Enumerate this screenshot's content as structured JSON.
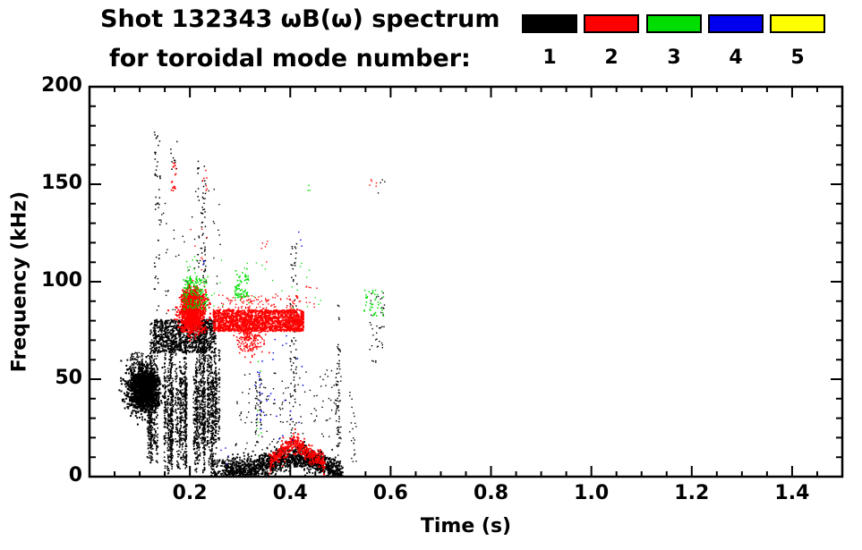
{
  "header": {
    "title": "Shot 132343 ωB(ω) spectrum",
    "subtitle": "for toroidal mode number:"
  },
  "chart_data": {
    "type": "scatter",
    "title": "Shot 132343 ωB(ω) spectrum",
    "subtitle": "for toroidal mode number:",
    "xlabel": "Time (s)",
    "ylabel": "Frequency (kHz)",
    "xlim": [
      0.0,
      1.5
    ],
    "ylim": [
      0,
      200
    ],
    "x_minor_step": 0.05,
    "y_minor_step": 10,
    "grid": false,
    "legend_position": "top-right",
    "xticks": [
      {
        "v": 0.2,
        "label": "0.2"
      },
      {
        "v": 0.4,
        "label": "0.4"
      },
      {
        "v": 0.6,
        "label": "0.6"
      },
      {
        "v": 0.8,
        "label": "0.8"
      },
      {
        "v": 1.0,
        "label": "1.0"
      },
      {
        "v": 1.2,
        "label": "1.2"
      },
      {
        "v": 1.4,
        "label": "1.4"
      }
    ],
    "yticks": [
      {
        "v": 0,
        "label": "0"
      },
      {
        "v": 50,
        "label": "50"
      },
      {
        "v": 100,
        "label": "100"
      },
      {
        "v": 150,
        "label": "150"
      },
      {
        "v": 200,
        "label": "200"
      }
    ],
    "legend": [
      {
        "label": "1",
        "color": "#000000"
      },
      {
        "label": "2",
        "color": "#ff0000"
      },
      {
        "label": "3",
        "color": "#00dd00"
      },
      {
        "label": "4",
        "color": "#0000ee"
      },
      {
        "label": "5",
        "color": "#ffff00"
      }
    ],
    "series": [
      {
        "name": "mode n=1",
        "color": "#000000",
        "clusters": [
          {
            "type": "gauss",
            "ct": 0.104,
            "cf": 45,
            "st": 0.015,
            "sf": 5.5,
            "n": 1200,
            "s": 2
          },
          {
            "type": "uniform",
            "t": [
              0.083,
              0.138
            ],
            "f": [
              36,
              53
            ],
            "n": 350,
            "s": 2
          },
          {
            "type": "uniform",
            "t": [
              0.08,
              0.125
            ],
            "f": [
              52,
              64
            ],
            "n": 90,
            "s": 1.5
          },
          {
            "type": "vlines",
            "t": [
              0.112,
              0.258
            ],
            "fb": [
              0,
              22
            ],
            "ft": [
              46,
              80
            ],
            "cols": 55,
            "per": 48,
            "s": 1.6
          },
          {
            "type": "uniform",
            "t": [
              0.125,
              0.248
            ],
            "f": [
              64,
              81
            ],
            "n": 900,
            "s": 1.8
          },
          {
            "type": "uniform",
            "t": [
              0.127,
              0.14
            ],
            "f": [
              85,
              178
            ],
            "n": 50,
            "s": 1.5
          },
          {
            "type": "vlines",
            "t": [
              0.212,
              0.23
            ],
            "fb": [
              85,
              110
            ],
            "ft": [
              150,
              183
            ],
            "cols": 4,
            "per": 14,
            "s": 1.5
          },
          {
            "type": "uniform",
            "t": [
              0.14,
              0.26
            ],
            "f": [
              82,
              148
            ],
            "n": 55,
            "s": 1.4
          },
          {
            "type": "uniform",
            "t": [
              0.16,
              0.176
            ],
            "f": [
              158,
              178
            ],
            "n": 10,
            "s": 1.5
          },
          {
            "type": "arc",
            "t": [
              0.27,
              0.503
            ],
            "peak": 0.42,
            "fpeak": 11,
            "fend": 2,
            "sf": 3,
            "n": 1500,
            "s": 1.8
          },
          {
            "type": "uniform",
            "t": [
              0.24,
              0.29
            ],
            "f": [
              0,
              9
            ],
            "n": 160,
            "s": 1.6
          },
          {
            "type": "uniform",
            "t": [
              0.29,
              0.5
            ],
            "f": [
              14,
              55
            ],
            "n": 130,
            "s": 1.4
          },
          {
            "type": "vlines",
            "t": [
              0.33,
              0.342
            ],
            "fb": [
              14,
              24
            ],
            "ft": [
              40,
              62
            ],
            "cols": 2,
            "per": 18,
            "s": 1.5
          },
          {
            "type": "uniform",
            "t": [
              0.398,
              0.412
            ],
            "f": [
              20,
              122
            ],
            "n": 85,
            "s": 1.5
          },
          {
            "type": "vlines",
            "t": [
              0.474,
              0.5
            ],
            "fb": [
              6,
              20
            ],
            "ft": [
              55,
              112
            ],
            "cols": 4,
            "per": 18,
            "s": 1.5
          },
          {
            "type": "uniform",
            "t": [
              0.517,
              0.532
            ],
            "f": [
              4,
              46
            ],
            "n": 22,
            "s": 1.4
          },
          {
            "type": "uniform",
            "t": [
              0.557,
              0.587
            ],
            "f": [
              58,
              96
            ],
            "n": 40,
            "s": 1.4
          },
          {
            "type": "uniform",
            "t": [
              0.574,
              0.59
            ],
            "f": [
              144,
              153
            ],
            "n": 4,
            "s": 1.4
          }
        ]
      },
      {
        "name": "mode n=2",
        "color": "#ff0000",
        "clusters": [
          {
            "type": "gauss",
            "ct": 0.203,
            "cf": 85,
            "st": 0.012,
            "sf": 5,
            "n": 650,
            "s": 2
          },
          {
            "type": "uniform",
            "t": [
              0.181,
              0.229
            ],
            "f": [
              74,
              94
            ],
            "n": 280,
            "s": 1.8
          },
          {
            "type": "gauss",
            "ct": 0.2,
            "cf": 93,
            "st": 0.009,
            "sf": 2.5,
            "n": 160,
            "s": 1.8
          },
          {
            "type": "uniform",
            "t": [
              0.245,
              0.425
            ],
            "f": [
              75,
              86
            ],
            "n": 1500,
            "s": 1.8
          },
          {
            "type": "uniform",
            "t": [
              0.255,
              0.42
            ],
            "f": [
              86,
              94
            ],
            "n": 110,
            "s": 1.4
          },
          {
            "type": "gauss",
            "ct": 0.318,
            "cf": 73,
            "st": 0.013,
            "sf": 5,
            "n": 220,
            "s": 1.6
          },
          {
            "type": "arc",
            "t": [
              0.356,
              0.468
            ],
            "peak": 0.405,
            "fpeak": 18,
            "fend": 7,
            "sf": 2.2,
            "n": 420,
            "s": 1.8
          },
          {
            "type": "uniform",
            "t": [
              0.161,
              0.173
            ],
            "f": [
              147,
              162
            ],
            "n": 18,
            "s": 1.6
          },
          {
            "type": "uniform",
            "t": [
              0.222,
              0.233
            ],
            "f": [
              147,
              158
            ],
            "n": 7,
            "s": 1.5
          },
          {
            "type": "uniform",
            "t": [
              0.341,
              0.357
            ],
            "f": [
              110,
              122
            ],
            "n": 6,
            "s": 1.4
          },
          {
            "type": "uniform",
            "t": [
              0.2,
              0.24
            ],
            "f": [
              98,
              132
            ],
            "n": 12,
            "s": 1.4
          },
          {
            "type": "uniform",
            "t": [
              0.428,
              0.452
            ],
            "f": [
              86,
              100
            ],
            "n": 10,
            "s": 1.4
          },
          {
            "type": "uniform",
            "t": [
              0.553,
              0.572
            ],
            "f": [
              146,
              153
            ],
            "n": 5,
            "s": 1.4
          }
        ]
      },
      {
        "name": "mode n=3",
        "color": "#00dd00",
        "clusters": [
          {
            "type": "uniform",
            "t": [
              0.185,
              0.235
            ],
            "f": [
              86,
              103
            ],
            "n": 150,
            "s": 1.6
          },
          {
            "type": "uniform",
            "t": [
              0.19,
              0.212
            ],
            "f": [
              103,
              114
            ],
            "n": 10,
            "s": 1.4
          },
          {
            "type": "uniform",
            "t": [
              0.288,
              0.317
            ],
            "f": [
              92,
              107
            ],
            "n": 65,
            "s": 1.6
          },
          {
            "type": "uniform",
            "t": [
              0.24,
              0.46
            ],
            "f": [
              86,
              112
            ],
            "n": 28,
            "s": 1.3
          },
          {
            "type": "uniform",
            "t": [
              0.545,
              0.586
            ],
            "f": [
              82,
              97
            ],
            "n": 42,
            "s": 1.5
          },
          {
            "type": "uniform",
            "t": [
              0.332,
              0.344
            ],
            "f": [
              20,
              60
            ],
            "n": 9,
            "s": 1.4
          },
          {
            "type": "uniform",
            "t": [
              0.42,
              0.442
            ],
            "f": [
              144,
              152
            ],
            "n": 3,
            "s": 1.4
          }
        ]
      },
      {
        "name": "mode n=4",
        "color": "#0000ee",
        "clusters": [
          {
            "type": "uniform",
            "t": [
              0.32,
              0.43
            ],
            "f": [
              18,
              62
            ],
            "n": 24,
            "s": 1.5
          },
          {
            "type": "uniform",
            "t": [
              0.332,
              0.341
            ],
            "f": [
              28,
              60
            ],
            "n": 9,
            "s": 1.5
          },
          {
            "type": "uniform",
            "t": [
              0.221,
              0.231
            ],
            "f": [
              104,
              113
            ],
            "n": 3,
            "s": 1.4
          },
          {
            "type": "uniform",
            "t": [
              0.408,
              0.422
            ],
            "f": [
              118,
              130
            ],
            "n": 3,
            "s": 1.4
          },
          {
            "type": "uniform",
            "t": [
              0.25,
              0.285
            ],
            "f": [
              4,
              16
            ],
            "n": 4,
            "s": 1.4
          },
          {
            "type": "uniform",
            "t": [
              0.36,
              0.405
            ],
            "f": [
              60,
              76
            ],
            "n": 5,
            "s": 1.4
          }
        ]
      },
      {
        "name": "mode n=5",
        "color": "#ffff00",
        "clusters": []
      }
    ]
  }
}
